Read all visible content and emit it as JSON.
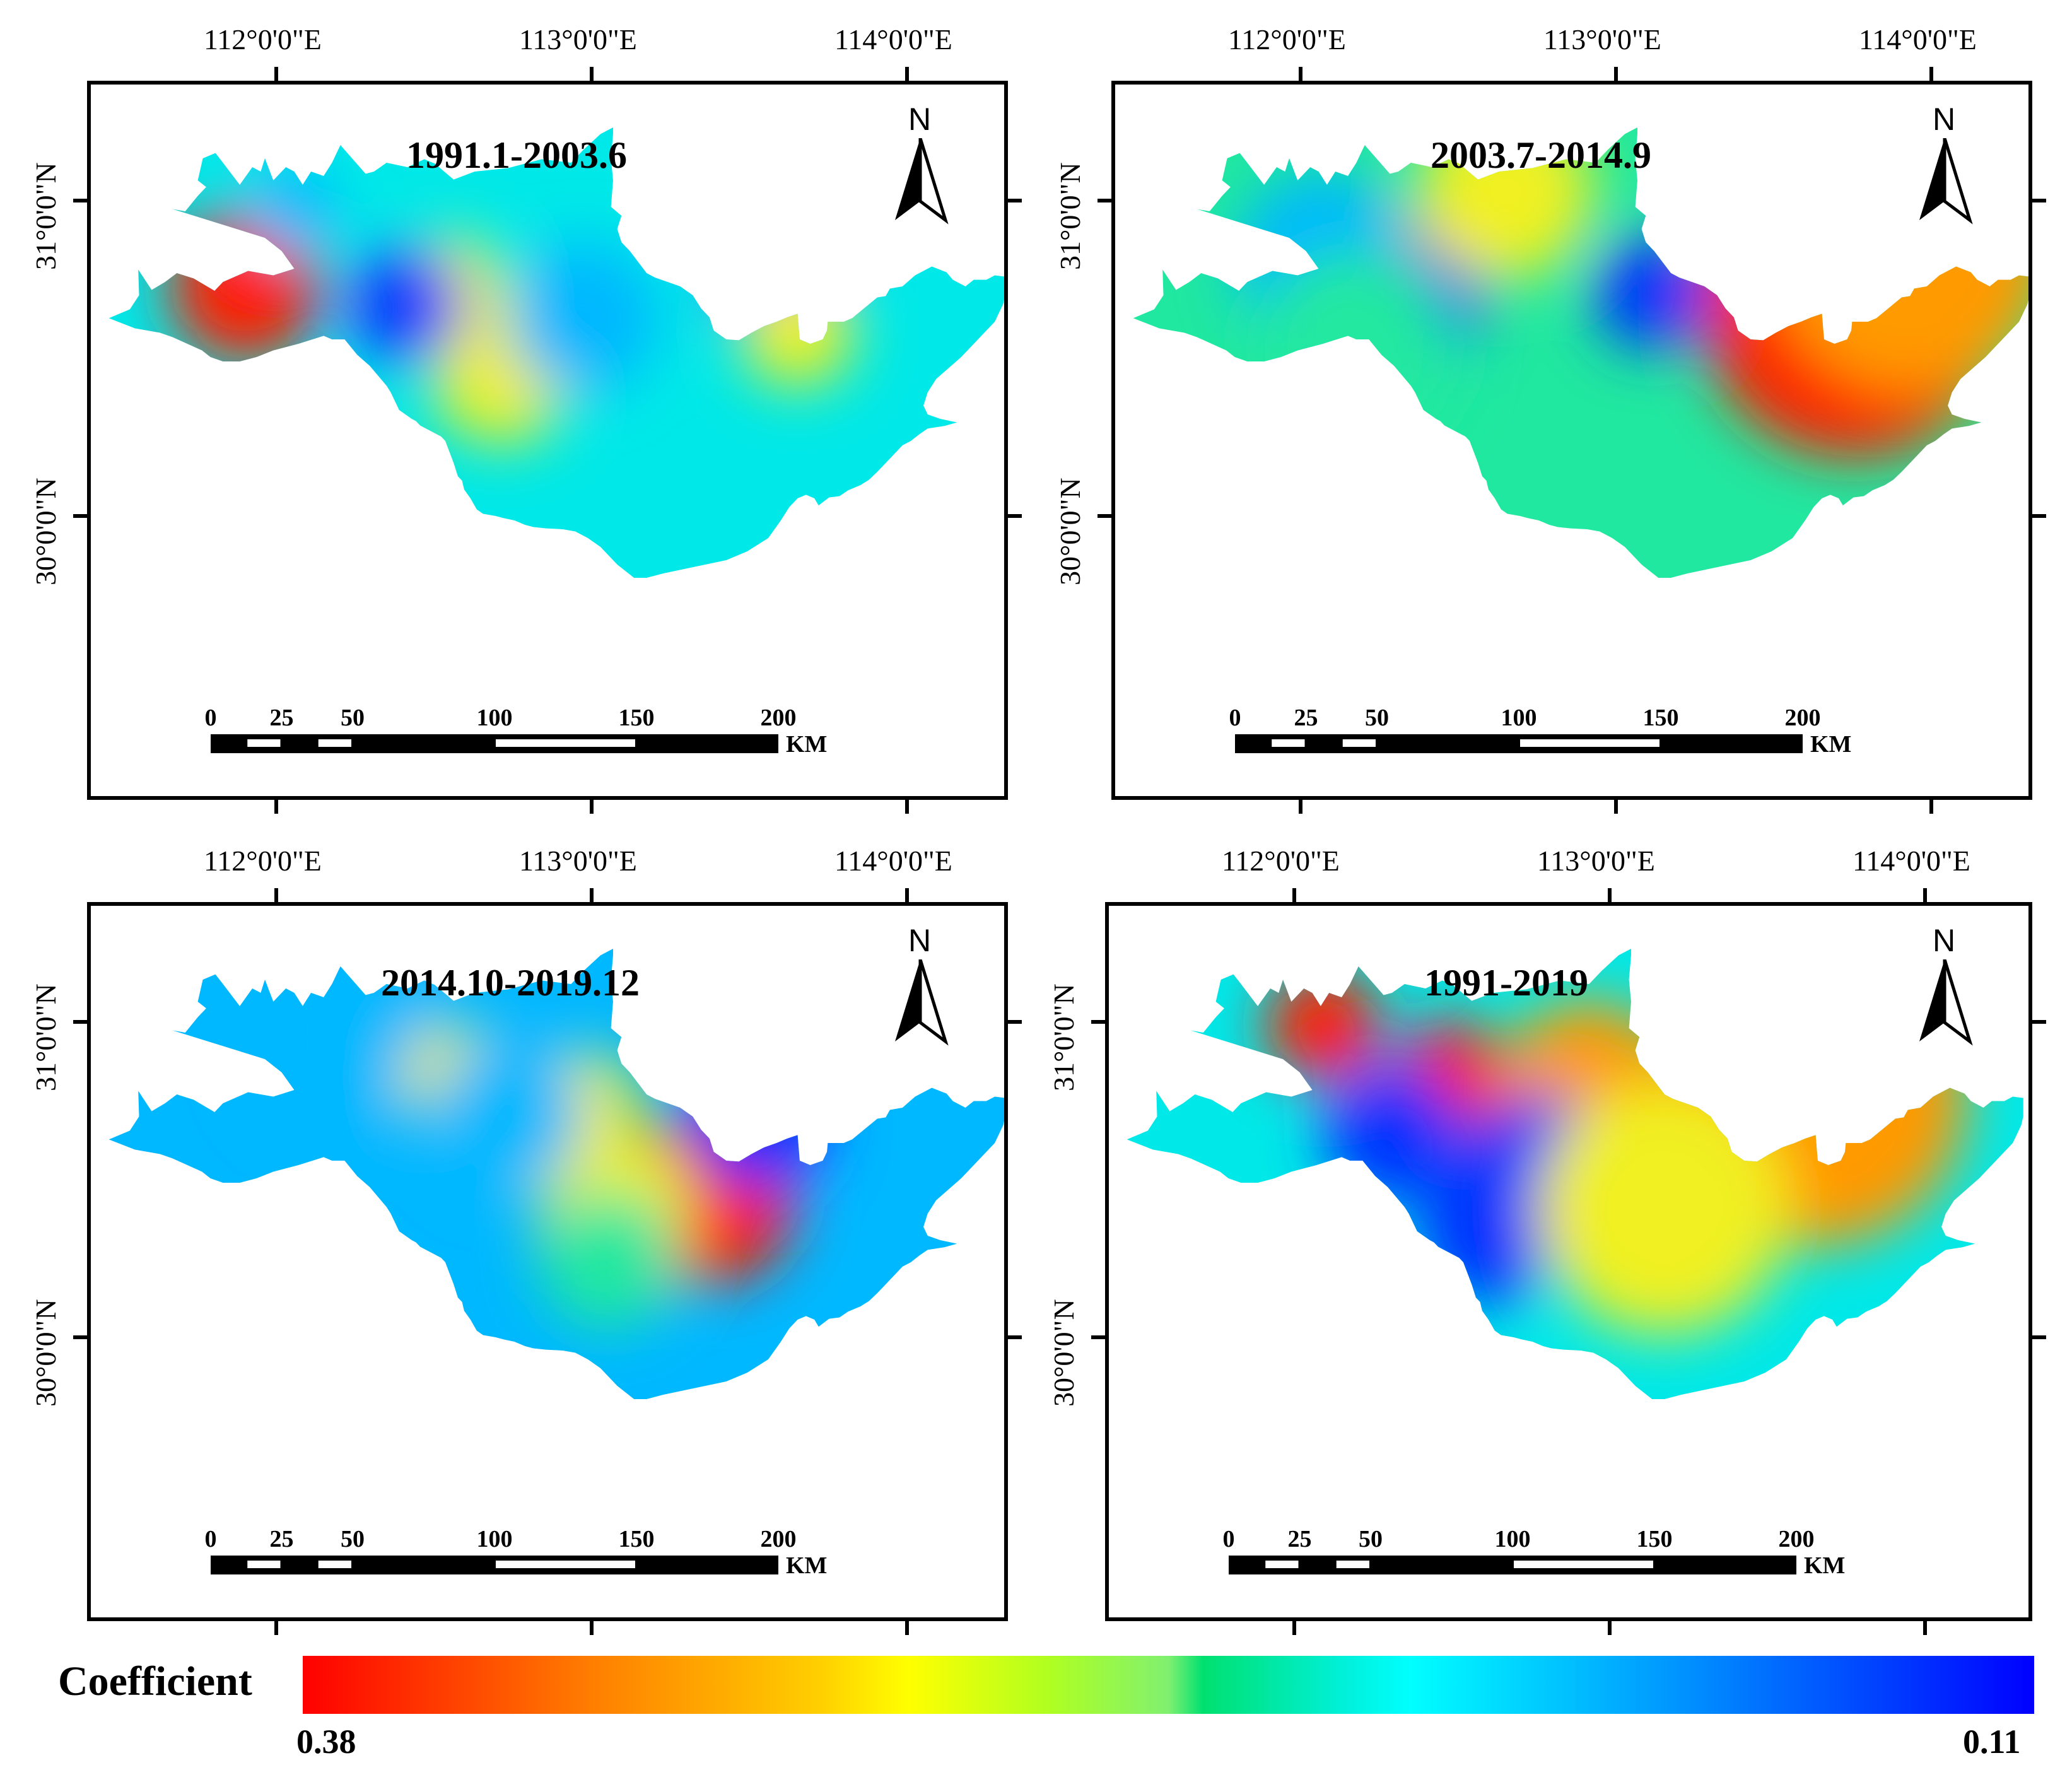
{
  "panels": [
    {
      "title": "1991.1-2003.6"
    },
    {
      "title": "2003.7-2014.9"
    },
    {
      "title": "2014.10-2019.12"
    },
    {
      "title": "1991-2019"
    }
  ],
  "axes": {
    "lon_labels": [
      "112°0'0\"E",
      "113°0'0\"E",
      "114°0'0\"E"
    ],
    "lat_labels": [
      "31°0'0\"N",
      "30°0'0\"N"
    ]
  },
  "north_arrow": {
    "label": "N"
  },
  "scale_bar": {
    "ticks": [
      "0",
      "25",
      "50",
      "100",
      "150",
      "200"
    ],
    "unit": "KM"
  },
  "legend": {
    "title": "Coefficient",
    "min_label": "0.38",
    "max_label": "0.11",
    "colors": {
      "high": "#ff0000",
      "mid": "#00ffff",
      "low": "#0000ff"
    }
  },
  "map_colors": {
    "red": "#ff1a00",
    "orange": "#ff9a00",
    "yellow": "#f0f020",
    "green": "#20e8a0",
    "cyan": "#00e8e8",
    "sky": "#00b8ff",
    "blue": "#0030ff"
  }
}
